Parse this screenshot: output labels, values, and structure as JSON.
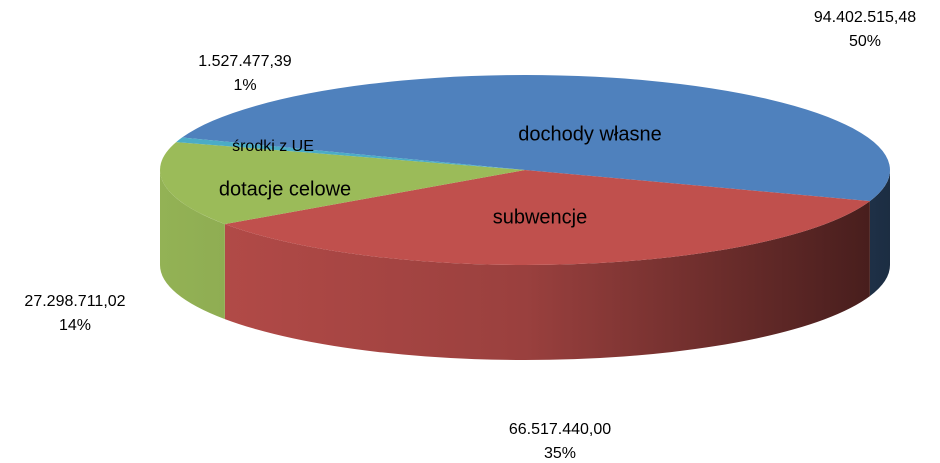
{
  "chart_data": {
    "type": "pie3d",
    "categories": [
      "dochody własne",
      "subwencje",
      "dotacje celowe",
      "środki  z UE"
    ],
    "values": [
      94402515.48,
      66517440.0,
      27298711.02,
      1527477.39
    ],
    "value_labels": [
      "94.402.515,48",
      "66.517.440,00",
      "27.298.711,02",
      "1.527.477,39"
    ],
    "percents": [
      50,
      35,
      14,
      1
    ],
    "percent_labels": [
      "50%",
      "35%",
      "14%",
      "1%"
    ],
    "colors": [
      "#4f81bd",
      "#c0504d",
      "#9bbb59",
      "#4bacc6"
    ]
  }
}
